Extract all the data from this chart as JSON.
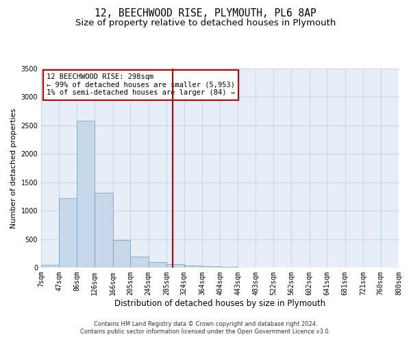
{
  "title": "12, BEECHWOOD RISE, PLYMOUTH, PL6 8AP",
  "subtitle": "Size of property relative to detached houses in Plymouth",
  "xlabel": "Distribution of detached houses by size in Plymouth",
  "ylabel": "Number of detached properties",
  "annotation_line1": "12 BEECHWOOD RISE: 298sqm",
  "annotation_line2": "← 99% of detached houses are smaller (5,953)",
  "annotation_line3": "1% of semi-detached houses are larger (84) →",
  "footer_line1": "Contains HM Land Registry data © Crown copyright and database right 2024.",
  "footer_line2": "Contains public sector information licensed under the Open Government Licence v3.0.",
  "bin_labels": [
    "7sqm",
    "47sqm",
    "86sqm",
    "126sqm",
    "166sqm",
    "205sqm",
    "245sqm",
    "285sqm",
    "324sqm",
    "364sqm",
    "404sqm",
    "443sqm",
    "483sqm",
    "522sqm",
    "562sqm",
    "602sqm",
    "641sqm",
    "681sqm",
    "721sqm",
    "760sqm",
    "800sqm"
  ],
  "bin_edges": [
    7,
    47,
    86,
    126,
    166,
    205,
    245,
    285,
    324,
    364,
    404,
    443,
    483,
    522,
    562,
    602,
    641,
    681,
    721,
    760,
    800
  ],
  "bar_heights": [
    50,
    1220,
    2580,
    1310,
    480,
    195,
    100,
    55,
    40,
    30,
    10,
    5,
    3,
    2,
    1,
    1,
    0,
    0,
    0,
    0
  ],
  "bar_color": "#c8d8eb",
  "bar_edge_color": "#7098b8",
  "grid_color": "#c8d4e4",
  "background_color": "#e8eef8",
  "vline_color": "#bb0000",
  "vline_x": 298,
  "ylim": [
    0,
    3500
  ],
  "yticks": [
    0,
    500,
    1000,
    1500,
    2000,
    2500,
    3000,
    3500
  ],
  "annotation_box_color": "#cc0000",
  "title_fontsize": 10.5,
  "subtitle_fontsize": 9.5,
  "axis_label_fontsize": 8.5,
  "tick_fontsize": 7,
  "annotation_fontsize": 7.5,
  "footer_fontsize": 6,
  "ylabel_fontsize": 8
}
